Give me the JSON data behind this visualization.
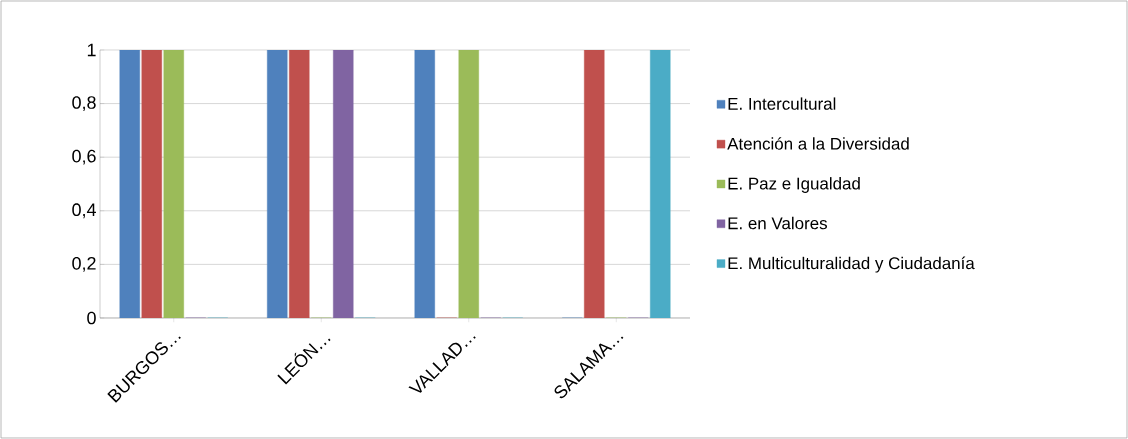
{
  "chart_data": {
    "type": "bar",
    "categories": [
      "BURGOS…",
      "LEÓN…",
      "VALLAD…",
      "SALAMA…"
    ],
    "series": [
      {
        "name": "E. Intercultural",
        "color": "#4f81bd",
        "values": [
          1,
          1,
          1,
          0
        ]
      },
      {
        "name": "Atención a la Diversidad",
        "color": "#c0504d",
        "values": [
          1,
          1,
          0,
          1
        ]
      },
      {
        "name": "E. Paz e Igualdad",
        "color": "#9bbb59",
        "values": [
          1,
          0,
          1,
          0
        ]
      },
      {
        "name": "E. en Valores",
        "color": "#8064a2",
        "values": [
          0,
          1,
          0,
          0
        ]
      },
      {
        "name": "E. Multiculturalidad y Ciudadanía",
        "color": "#4bacc6",
        "values": [
          0,
          0,
          0,
          1
        ]
      }
    ],
    "ylim": [
      0,
      1
    ],
    "yticks": [
      0,
      {
        "value": 0.2,
        "label": "0,2"
      },
      {
        "value": 0.4,
        "label": "0,4"
      },
      {
        "value": 0.6,
        "label": "0,6"
      },
      {
        "value": 0.8,
        "label": "0,8"
      },
      1
    ],
    "grid": "y",
    "legend": "right"
  }
}
